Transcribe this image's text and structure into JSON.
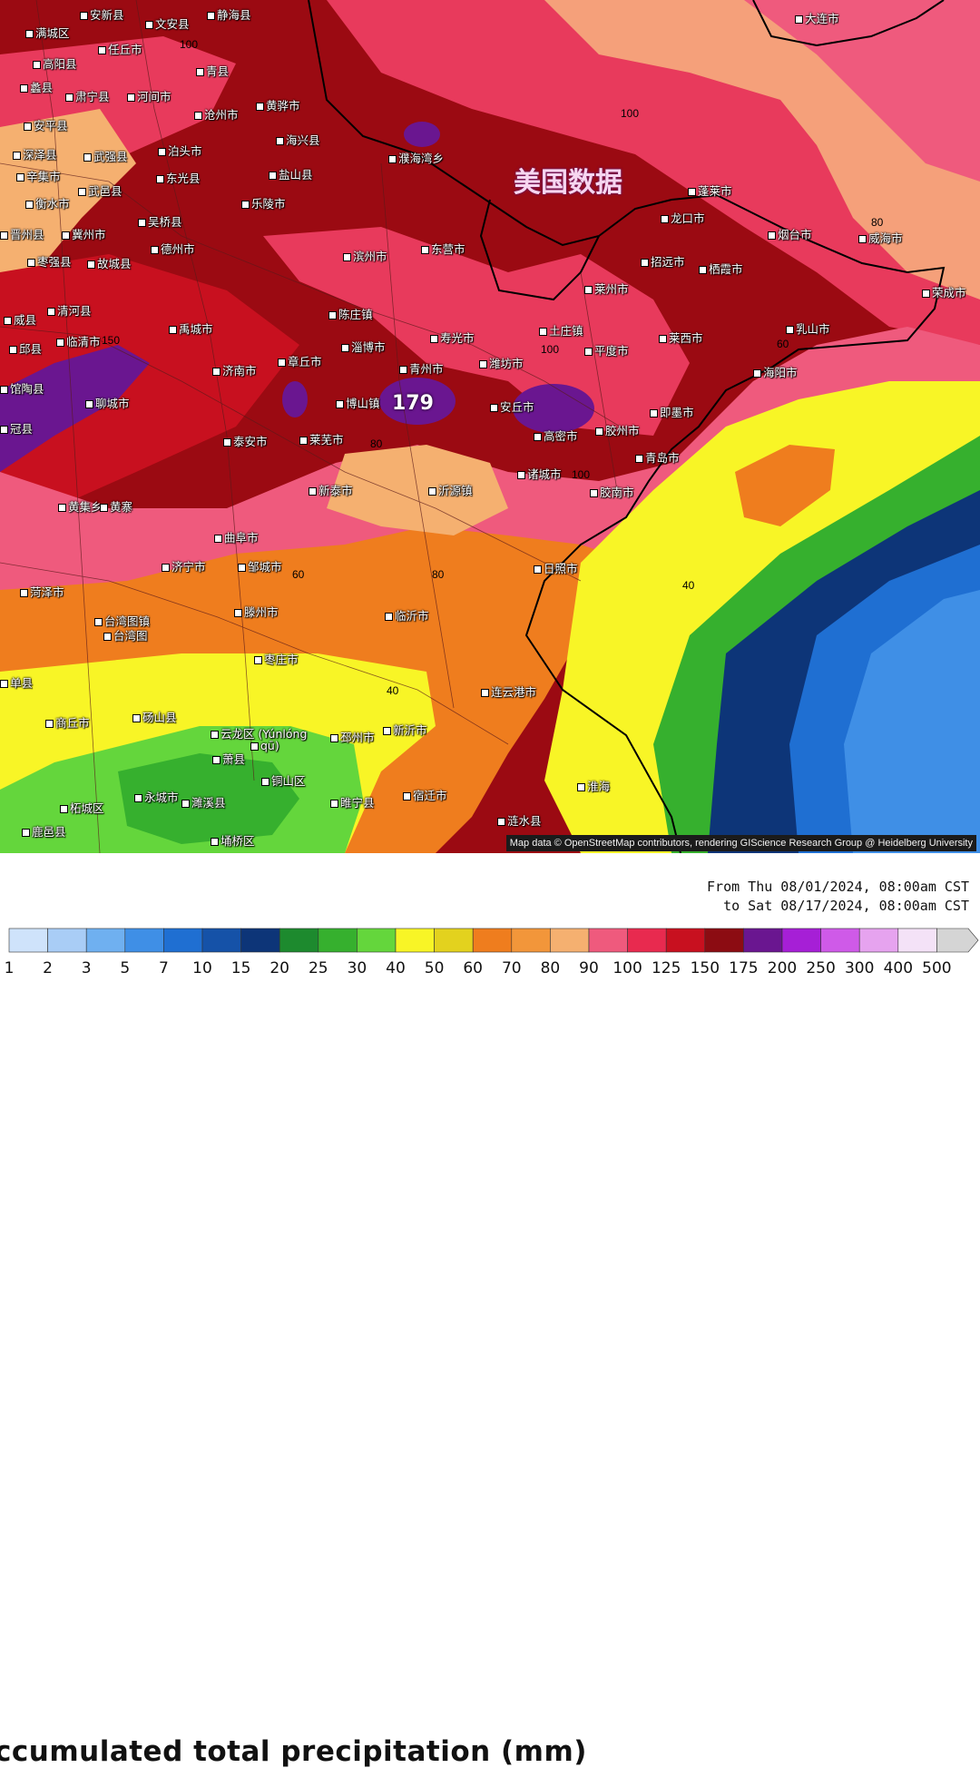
{
  "map": {
    "attribution": "Map data © OpenStreetMap contributors, rendering GIScience Research Group @ Heidelberg University",
    "watermark": "美国数据",
    "max_label": "179",
    "contour_labels": [
      "100",
      "100",
      "150",
      "80",
      "100",
      "100",
      "80",
      "60",
      "60",
      "80",
      "40",
      "40",
      "80",
      "80"
    ],
    "cities": [
      {
        "name": "安新县"
      },
      {
        "name": "文安县"
      },
      {
        "name": "静海县"
      },
      {
        "name": "满城区"
      },
      {
        "name": "任丘市"
      },
      {
        "name": "高阳县"
      },
      {
        "name": "青县"
      },
      {
        "name": "蠡县"
      },
      {
        "name": "肃宁县"
      },
      {
        "name": "河间市"
      },
      {
        "name": "黄骅市"
      },
      {
        "name": "沧州市"
      },
      {
        "name": "安平县"
      },
      {
        "name": "海兴县"
      },
      {
        "name": "深泽县"
      },
      {
        "name": "泊头市"
      },
      {
        "name": "辛集市"
      },
      {
        "name": "武强县"
      },
      {
        "name": "东光县"
      },
      {
        "name": "盐山县"
      },
      {
        "name": "衡水市"
      },
      {
        "name": "武邑县"
      },
      {
        "name": "乐陵市"
      },
      {
        "name": "吴桥县"
      },
      {
        "name": "晋州县"
      },
      {
        "name": "冀州市"
      },
      {
        "name": "德州市"
      },
      {
        "name": "枣强县"
      },
      {
        "name": "故城县"
      },
      {
        "name": "清河县"
      },
      {
        "name": "威县"
      },
      {
        "name": "临清市"
      },
      {
        "name": "邱县"
      },
      {
        "name": "馆陶县"
      },
      {
        "name": "冠县"
      },
      {
        "name": "聊城市"
      },
      {
        "name": "禹城市"
      },
      {
        "name": "济南市"
      },
      {
        "name": "滨州市"
      },
      {
        "name": "东营市"
      },
      {
        "name": "陈庄镇"
      },
      {
        "name": "淄博市"
      },
      {
        "name": "章丘市"
      },
      {
        "name": "博山镇"
      },
      {
        "name": "青州市"
      },
      {
        "name": "寿光市"
      },
      {
        "name": "潍坊市"
      },
      {
        "name": "安丘市"
      },
      {
        "name": "高密市"
      },
      {
        "name": "莱芜市"
      },
      {
        "name": "泰安市"
      },
      {
        "name": "新泰市"
      },
      {
        "name": "沂源镇"
      },
      {
        "name": "诸城市"
      },
      {
        "name": "胶州市"
      },
      {
        "name": "胶南市"
      },
      {
        "name": "青岛市"
      },
      {
        "name": "即墨市"
      },
      {
        "name": "平度市"
      },
      {
        "name": "莱州市"
      },
      {
        "name": "土庄镇"
      },
      {
        "name": "招远市"
      },
      {
        "name": "龙口市"
      },
      {
        "name": "蓬莱市"
      },
      {
        "name": "栖霞市"
      },
      {
        "name": "烟台市"
      },
      {
        "name": "威海市"
      },
      {
        "name": "荣成市"
      },
      {
        "name": "乳山市"
      },
      {
        "name": "海阳市"
      },
      {
        "name": "莱西市"
      },
      {
        "name": "大连市"
      },
      {
        "name": "黄集乡"
      },
      {
        "name": "黄寨"
      },
      {
        "name": "曲阜市"
      },
      {
        "name": "济宁市"
      },
      {
        "name": "邹城市"
      },
      {
        "name": "菏泽市"
      },
      {
        "name": "单县"
      },
      {
        "name": "滕州市"
      },
      {
        "name": "临沂市"
      },
      {
        "name": "日照市"
      },
      {
        "name": "枣庄市"
      },
      {
        "name": "台湾图镇"
      },
      {
        "name": "台湾图"
      },
      {
        "name": "连云港市"
      },
      {
        "name": "商丘市"
      },
      {
        "name": "砀山县"
      },
      {
        "name": "云龙区 (Yúnlóng"
      },
      {
        "name": "qū)"
      },
      {
        "name": "邳州市"
      },
      {
        "name": "新沂市"
      },
      {
        "name": "萧县"
      },
      {
        "name": "铜山区"
      },
      {
        "name": "永城市"
      },
      {
        "name": "濉溪县"
      },
      {
        "name": "睢宁县"
      },
      {
        "name": "宿迁市"
      },
      {
        "name": "淮海"
      },
      {
        "name": "涟水县"
      },
      {
        "name": "柘城区"
      },
      {
        "name": "鹿邑县"
      },
      {
        "name": "埇桥区"
      },
      {
        "name": "濮海湾乡"
      }
    ]
  },
  "footer": {
    "title": "ccumulated total precipitation (mm)",
    "period_from": "From Thu 08/01/2024, 08:00am CST",
    "period_to": "to Sat 08/17/2024, 08:00am CST",
    "scale": [
      {
        "label": "1",
        "color": "#cfe3fb"
      },
      {
        "label": "2",
        "color": "#a9cdf6"
      },
      {
        "label": "3",
        "color": "#6fb0f0"
      },
      {
        "label": "5",
        "color": "#3f8fe6"
      },
      {
        "label": "7",
        "color": "#1f6fd2"
      },
      {
        "label": "10",
        "color": "#1552a8"
      },
      {
        "label": "15",
        "color": "#0d3578"
      },
      {
        "label": "20",
        "color": "#1d8a2e"
      },
      {
        "label": "25",
        "color": "#36b02e"
      },
      {
        "label": "30",
        "color": "#64d63c"
      },
      {
        "label": "40",
        "color": "#f8f526"
      },
      {
        "label": "50",
        "color": "#e3d21e"
      },
      {
        "label": "60",
        "color": "#ef7d1e"
      },
      {
        "label": "70",
        "color": "#f2963a"
      },
      {
        "label": "80",
        "color": "#f5b070"
      },
      {
        "label": "90",
        "color": "#ef5a7d"
      },
      {
        "label": "100",
        "color": "#e82a4f"
      },
      {
        "label": "125",
        "color": "#c8101f"
      },
      {
        "label": "150",
        "color": "#8c0c12"
      },
      {
        "label": "175",
        "color": "#6a1690"
      },
      {
        "label": "200",
        "color": "#a61fd6"
      },
      {
        "label": "250",
        "color": "#cf5ae8"
      },
      {
        "label": "300",
        "color": "#e6a3ef"
      },
      {
        "label": "400",
        "color": "#f4e2f7"
      },
      {
        "label": "500",
        "color": "#d5d5d5"
      }
    ]
  }
}
